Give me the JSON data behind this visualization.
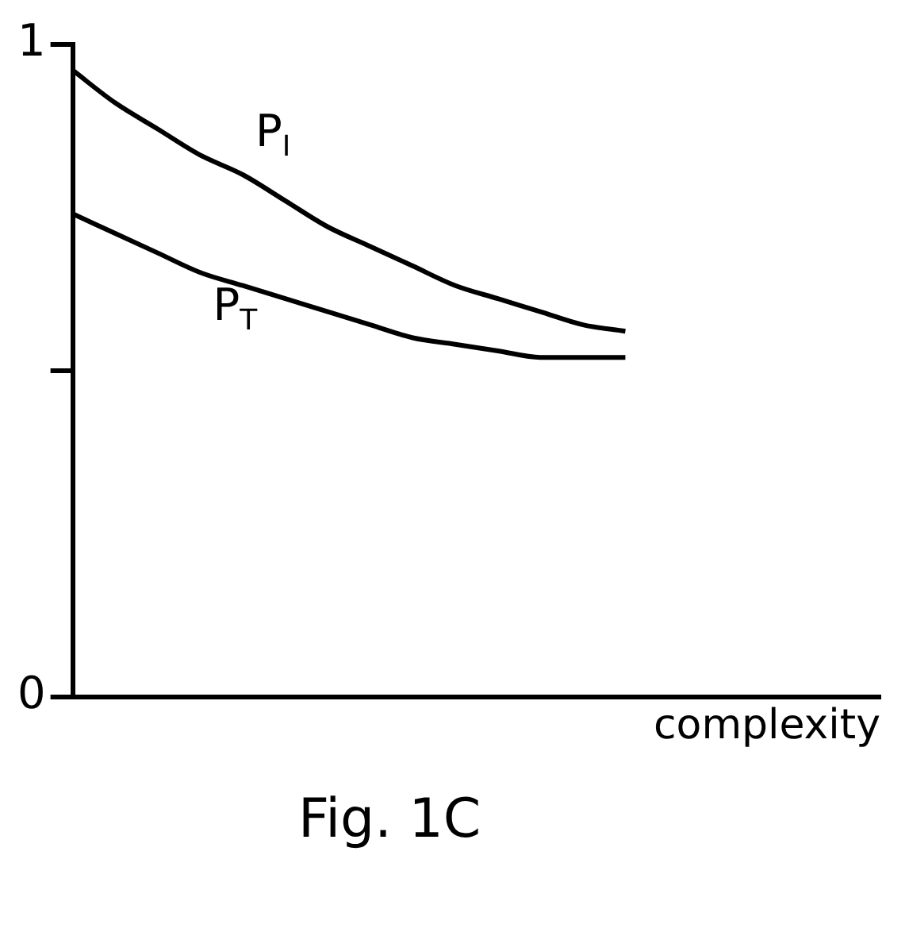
{
  "chart_data": {
    "type": "line",
    "xlabel": "complexity",
    "annotations": [
      "Fig. 1C"
    ],
    "categories": [
      null,
      null,
      null,
      null,
      null,
      null,
      null,
      null,
      null,
      null,
      null,
      null,
      null,
      null,
      null,
      null,
      null,
      null,
      null,
      null
    ],
    "series": [
      {
        "name": "P$_{I}$",
        "color": "#000000",
        "values": [
          0.96,
          0.91,
          0.87,
          0.83,
          0.8,
          0.76,
          0.72,
          0.69,
          0.66,
          0.63,
          0.61,
          0.59,
          0.57,
          0.56,
          null,
          null,
          null,
          null,
          null,
          null
        ]
      },
      {
        "name": "P$_{T}$",
        "color": "#000000",
        "values": [
          0.74,
          0.71,
          0.68,
          0.65,
          0.63,
          0.61,
          0.59,
          0.57,
          0.55,
          0.54,
          0.53,
          0.52,
          0.52,
          0.52,
          null,
          null,
          null,
          null,
          null,
          null
        ]
      }
    ],
    "ylim": [
      0,
      1
    ],
    "yticks": [
      0,
      {
        "value": 0.5,
        "label": null
      },
      1
    ],
    "grid": false,
    "legend": false,
    "tick_labels": "y",
    "marker": "none",
    "line_style": "solid"
  }
}
